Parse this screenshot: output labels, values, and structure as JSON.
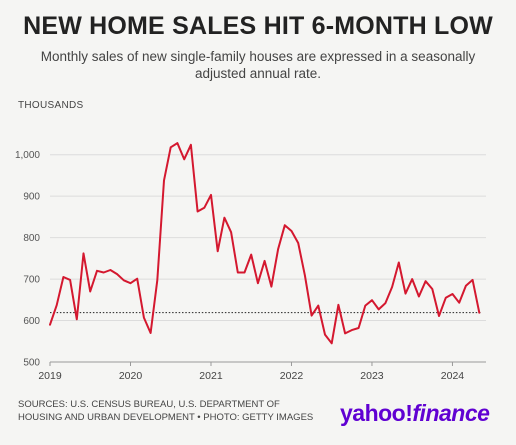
{
  "header": {
    "title": "NEW HOME SALES HIT 6-MONTH LOW",
    "subtitle": "Monthly sales of new single-family houses are expressed in a seasonally adjusted annual rate."
  },
  "footer": {
    "source": "SOURCES: U.S. CENSUS BUREAU, U.S. DEPARTMENT OF HOUSING AND URBAN DEVELOPMENT • PHOTO: GETTY IMAGES",
    "brand_part1": "yahoo!",
    "brand_part2": "finance",
    "brand_color": "#6001d2"
  },
  "chart_data": {
    "type": "line",
    "unit_label": "THOUSANDS",
    "title": "NEW HOME SALES HIT 6-MONTH LOW",
    "subtitle": "Monthly sales of new single-family houses are expressed in a seasonally adjusted annual rate.",
    "x_ticks": [
      "2019",
      "2020",
      "2021",
      "2022",
      "2023",
      "2024"
    ],
    "y_ticks": [
      "500",
      "600",
      "700",
      "800",
      "900",
      "1,000"
    ],
    "y_tick_values": [
      500,
      600,
      700,
      800,
      900,
      1000
    ],
    "ylim": [
      500,
      1050
    ],
    "xlim": [
      "2019-01",
      "2024-06"
    ],
    "line_color": "#d4182f",
    "reference_line": {
      "value": 619,
      "style": "dotted"
    },
    "grid": "horizontal",
    "series": [
      {
        "x": [
          "2019-01",
          "2019-02",
          "2019-03",
          "2019-04",
          "2019-05",
          "2019-06",
          "2019-07",
          "2019-08",
          "2019-09",
          "2019-10",
          "2019-11",
          "2019-12",
          "2020-01",
          "2020-02",
          "2020-03",
          "2020-04",
          "2020-05",
          "2020-06",
          "2020-07",
          "2020-08",
          "2020-09",
          "2020-10",
          "2020-11",
          "2020-12",
          "2021-01",
          "2021-02",
          "2021-03",
          "2021-04",
          "2021-05",
          "2021-06",
          "2021-07",
          "2021-08",
          "2021-09",
          "2021-10",
          "2021-11",
          "2021-12",
          "2022-01",
          "2022-02",
          "2022-03",
          "2022-04",
          "2022-05",
          "2022-06",
          "2022-07",
          "2022-08",
          "2022-09",
          "2022-10",
          "2022-11",
          "2022-12",
          "2023-01",
          "2023-02",
          "2023-03",
          "2023-04",
          "2023-05",
          "2023-06",
          "2023-07",
          "2023-08",
          "2023-09",
          "2023-10",
          "2023-11",
          "2023-12",
          "2024-01",
          "2024-02",
          "2024-03",
          "2024-04",
          "2024-05"
        ],
        "values": [
          590,
          637,
          705,
          698,
          603,
          762,
          670,
          720,
          716,
          722,
          712,
          697,
          690,
          701,
          607,
          570,
          697,
          938,
          1018,
          1028,
          989,
          1024,
          863,
          872,
          903,
          767,
          848,
          813,
          716,
          716,
          759,
          690,
          744,
          682,
          772,
          830,
          816,
          787,
          709,
          612,
          636,
          566,
          545,
          638,
          569,
          577,
          582,
          636,
          649,
          627,
          642,
          681,
          740,
          665,
          700,
          658,
          695,
          676,
          611,
          655,
          664,
          643,
          684,
          698,
          619
        ]
      }
    ]
  }
}
